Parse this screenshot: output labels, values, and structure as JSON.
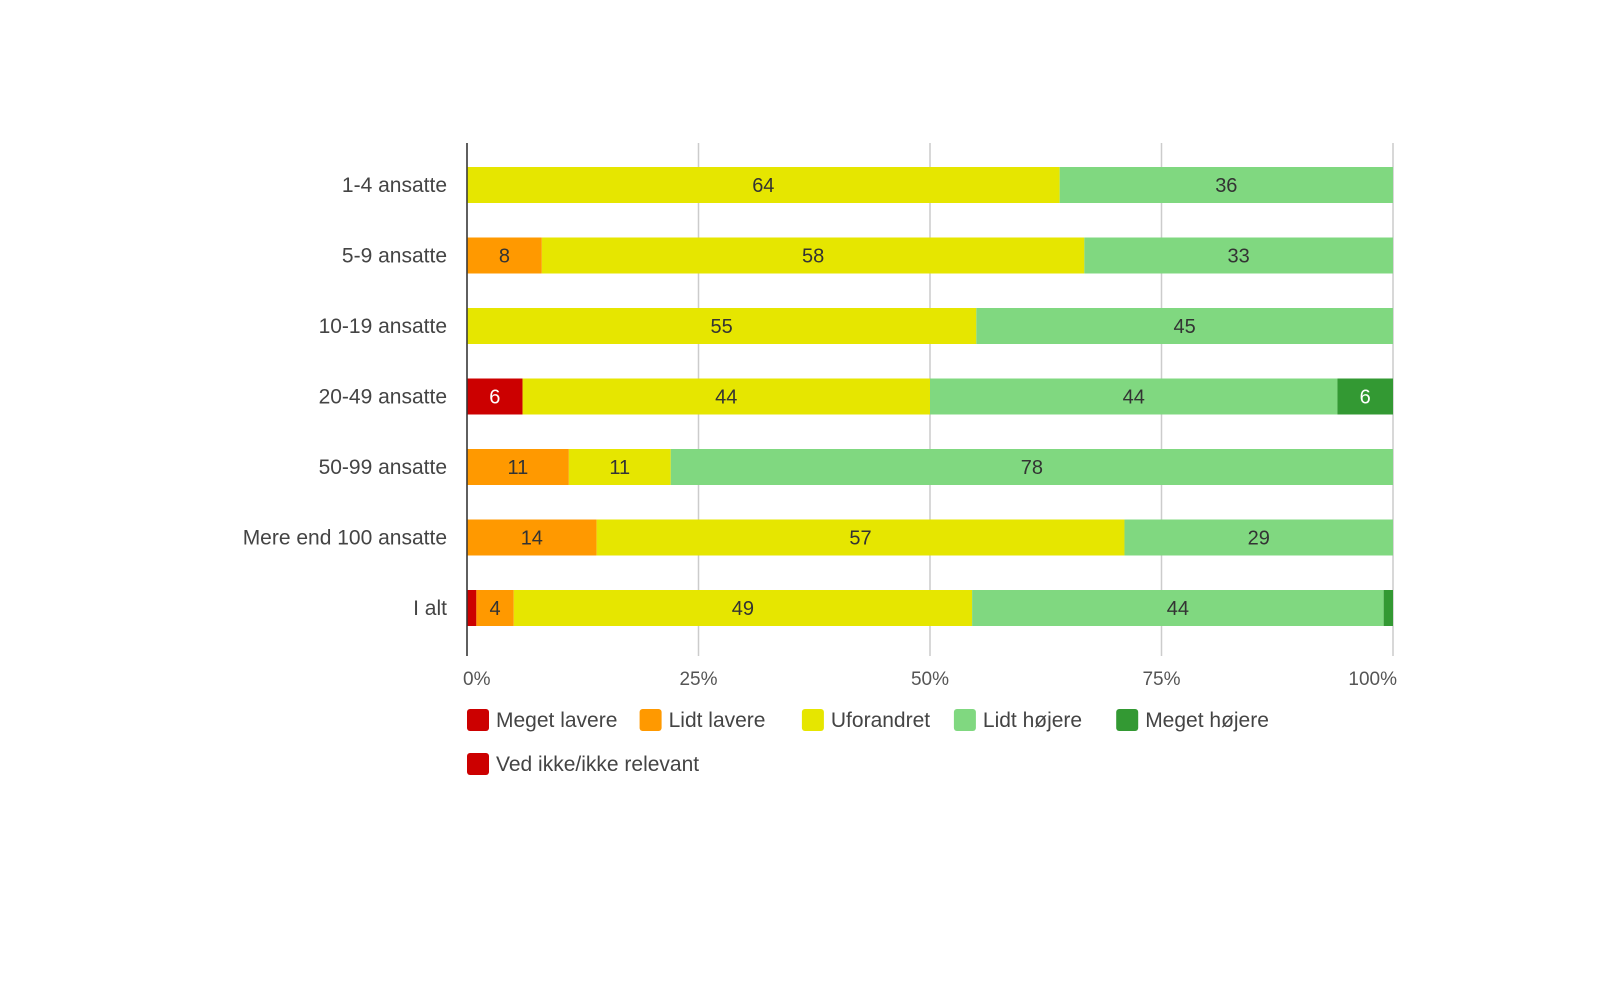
{
  "chart_data": {
    "type": "bar",
    "orientation": "horizontal",
    "stacked": "percent",
    "title": "",
    "xlabel": "",
    "ylabel": "",
    "xlim": [
      0,
      100
    ],
    "grid": true,
    "legend_position": "bottom",
    "x_ticks": [
      "0%",
      "25%",
      "50%",
      "75%",
      "100%"
    ],
    "x_tick_values": [
      0,
      25,
      50,
      75,
      100
    ],
    "categories": [
      "1-4 ansatte",
      "5-9 ansatte",
      "10-19 ansatte",
      "20-49 ansatte",
      "50-99 ansatte",
      "Mere end 100 ansatte",
      "I alt"
    ],
    "series": [
      {
        "name": "Meget lavere",
        "color": "#cc0000",
        "label_color": "#ffffff",
        "values": [
          0,
          0,
          0,
          6,
          0,
          0,
          1
        ],
        "labels": [
          "",
          "",
          "",
          "6",
          "",
          "",
          ""
        ]
      },
      {
        "name": "Lidt lavere",
        "color": "#ff9900",
        "label_color": "#333333",
        "values": [
          0,
          8,
          0,
          0,
          11,
          14,
          4
        ],
        "labels": [
          "",
          "8",
          "",
          "",
          "11",
          "14",
          "4"
        ]
      },
      {
        "name": "Uforandret",
        "color": "#e6e600",
        "label_color": "#333333",
        "values": [
          64,
          58,
          55,
          44,
          11,
          57,
          49
        ],
        "labels": [
          "64",
          "58",
          "55",
          "44",
          "11",
          "57",
          "49"
        ]
      },
      {
        "name": "Lidt højere",
        "color": "#80d880",
        "label_color": "#333333",
        "values": [
          36,
          33,
          45,
          44,
          78,
          29,
          44
        ],
        "labels": [
          "36",
          "33",
          "45",
          "44",
          "78",
          "29",
          "44"
        ]
      },
      {
        "name": "Meget højere",
        "color": "#339933",
        "label_color": "#ffffff",
        "values": [
          0,
          0,
          0,
          6,
          0,
          0,
          1
        ],
        "labels": [
          "",
          "",
          "",
          "6",
          "",
          "",
          ""
        ]
      },
      {
        "name": "Ved ikke/ikke relevant",
        "color": "#cc0000",
        "label_color": "#ffffff",
        "values": [
          0,
          0,
          0,
          0,
          0,
          0,
          0
        ],
        "labels": [
          "",
          "",
          "",
          "",
          "",
          "",
          ""
        ]
      }
    ]
  }
}
